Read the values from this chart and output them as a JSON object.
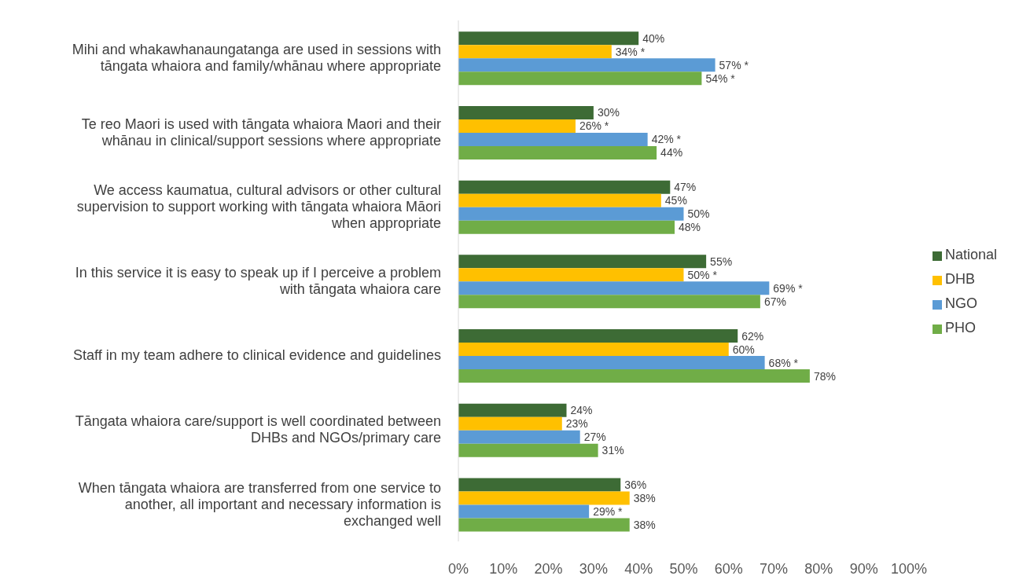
{
  "chart_data": {
    "type": "bar",
    "orientation": "horizontal",
    "legend": "right",
    "categories": [
      "Mihi and whakawhanaungatanga are used in sessions with\ntāngata whaiora and family/whānau where appropriate",
      "Te reo Maori is used with tāngata whaiora Maori and their\nwhānau in clinical/support sessions where appropriate",
      "We access kaumatua, cultural advisors or other cultural\nsupervision to support working with tāngata whaiora Māori\nwhen appropriate",
      "In this service it is easy to speak up if I perceive a problem\nwith tāngata whaiora care",
      "Staff in my team adhere to clinical evidence and guidelines",
      "Tāngata whaiora care/support is well coordinated between\nDHBs and NGOs/primary care",
      "When tāngata whaiora are transferred from one service to\nanother, all important and necessary information is\nexchanged well"
    ],
    "series": [
      {
        "name": "National",
        "color": "#3d6b35",
        "values": [
          40,
          30,
          47,
          55,
          62,
          24,
          36
        ],
        "value_labels": [
          "40%",
          "30%",
          "47%",
          "55%",
          "62%",
          "24%",
          "36%"
        ]
      },
      {
        "name": "DHB",
        "color": "#ffc000",
        "values": [
          34,
          26,
          45,
          50,
          60,
          23,
          38
        ],
        "value_labels": [
          "34% *",
          "26% *",
          "45%",
          "50% *",
          "60%",
          "23%",
          "38%"
        ]
      },
      {
        "name": "NGO",
        "color": "#5b9bd5",
        "values": [
          57,
          42,
          50,
          69,
          68,
          27,
          29
        ],
        "value_labels": [
          "57% *",
          "42% *",
          "50%",
          "69% *",
          "68% *",
          "27%",
          "29% *"
        ]
      },
      {
        "name": "PHO",
        "color": "#70ad47",
        "values": [
          54,
          44,
          48,
          67,
          78,
          31,
          38
        ],
        "value_labels": [
          "54% *",
          "44%",
          "48%",
          "67%",
          "78%",
          "31%",
          "38%"
        ]
      }
    ],
    "xlim": [
      0,
      100
    ],
    "xticks": [
      {
        "value": 0,
        "label": "0%"
      },
      {
        "value": 10,
        "label": "10%"
      },
      {
        "value": 20,
        "label": "20%"
      },
      {
        "value": 30,
        "label": "30%"
      },
      {
        "value": 40,
        "label": "40%"
      },
      {
        "value": 50,
        "label": "50%"
      },
      {
        "value": 60,
        "label": "60%"
      },
      {
        "value": 70,
        "label": "70%"
      },
      {
        "value": 80,
        "label": "80%"
      },
      {
        "value": 90,
        "label": "90%"
      },
      {
        "value": 100,
        "label": "100%"
      }
    ]
  }
}
